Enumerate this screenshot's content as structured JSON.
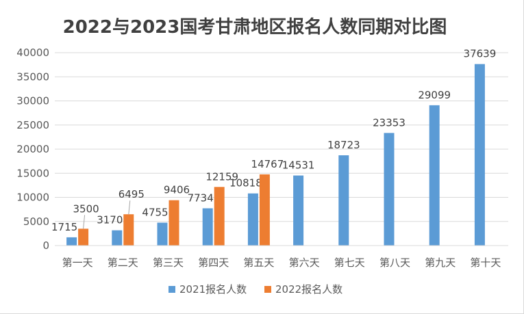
{
  "chart_data": {
    "type": "bar",
    "title": "2022与2023国考甘肃地区报名人数同期对比图",
    "xlabel": "",
    "ylabel": "",
    "categories": [
      "第一天",
      "第二天",
      "第三天",
      "第四天",
      "第五天",
      "第六天",
      "第七天",
      "第八天",
      "第九天",
      "第十天"
    ],
    "series": [
      {
        "name": "2021报名人数",
        "color": "#5b9bd5",
        "values": [
          1715,
          3170,
          4755,
          7734,
          10818,
          14531,
          18723,
          23353,
          29099,
          37639
        ]
      },
      {
        "name": "2022报名人数",
        "color": "#ed7d31",
        "values": [
          3500,
          6495,
          9406,
          12159,
          14767,
          null,
          null,
          null,
          null,
          null
        ]
      }
    ],
    "ylim": [
      0,
      40000
    ],
    "yticks": [
      0,
      5000,
      10000,
      15000,
      20000,
      25000,
      30000,
      35000,
      40000
    ],
    "grid": true,
    "legend_position": "bottom"
  }
}
